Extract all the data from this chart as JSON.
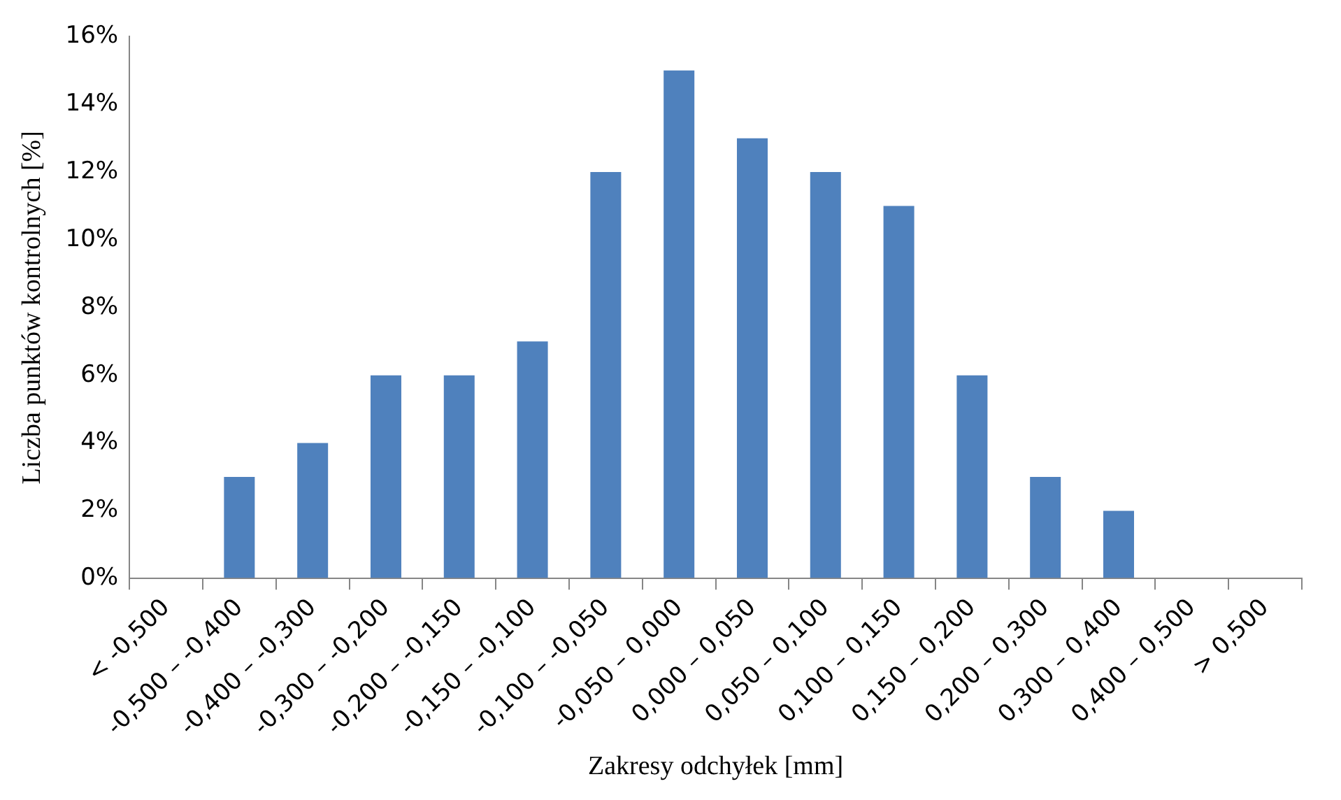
{
  "chart_data": {
    "type": "bar",
    "xlabel": "Zakresy odchyłek [mm]",
    "ylabel": "Liczba punktów kontrolnych [%]",
    "categories": [
      "< -0,500",
      "-0,500 – -0,400",
      "-0,400 – -0,300",
      "-0,300 – -0,200",
      "-0,200 – -0,150",
      "-0,150 – -0,100",
      "-0,100 – -0,050",
      "-0,050 – 0,000",
      "0,000 – 0,050",
      "0,050 – 0,100",
      "0,100 – 0,150",
      "0,150 – 0,200",
      "0,200 – 0,300",
      "0,300 – 0,400",
      "0,400 – 0,500",
      "> 0,500"
    ],
    "values": [
      0,
      3,
      4,
      6,
      6,
      7,
      12,
      15,
      13,
      12,
      11,
      6,
      3,
      2,
      0,
      0
    ],
    "color": "#4f81bd",
    "ylim": [
      0,
      16
    ],
    "yticks": [
      {
        "value": 0,
        "label": "0%"
      },
      {
        "value": 2,
        "label": "2%"
      },
      {
        "value": 4,
        "label": "4%"
      },
      {
        "value": 6,
        "label": "6%"
      },
      {
        "value": 8,
        "label": "8%"
      },
      {
        "value": 10,
        "label": "10%"
      },
      {
        "value": 12,
        "label": "12%"
      },
      {
        "value": 14,
        "label": "14%"
      },
      {
        "value": 16,
        "label": "16%"
      }
    ],
    "grid": false,
    "legend": false
  }
}
